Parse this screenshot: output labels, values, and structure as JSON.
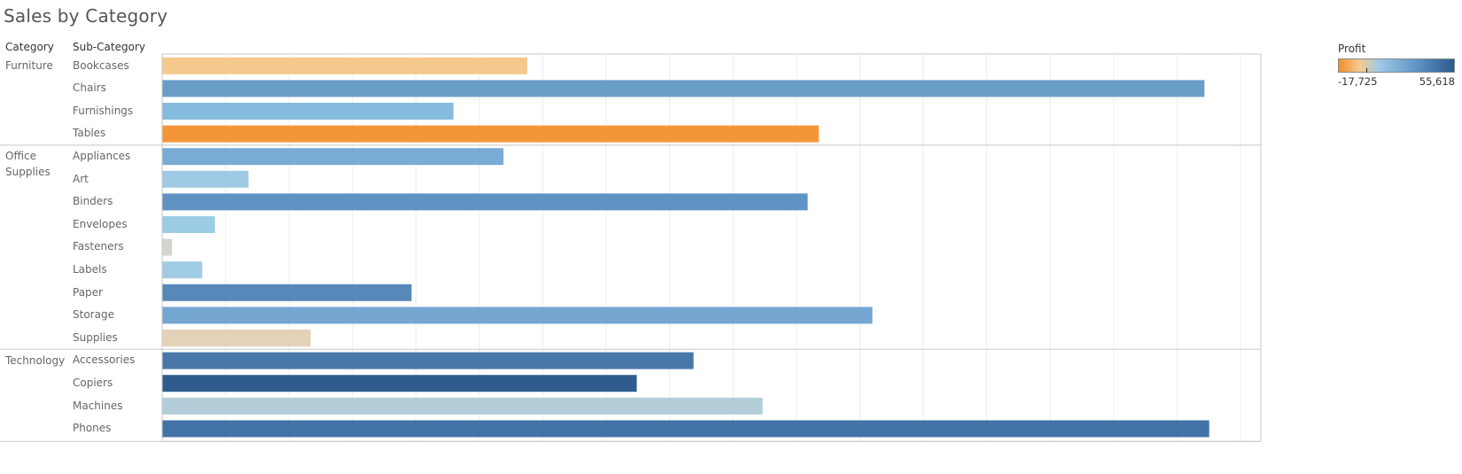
{
  "title": "Sales by Category",
  "headers": {
    "category": "Category",
    "sub_category": "Sub-Category"
  },
  "legend": {
    "title": "Profit",
    "min_label": "-17,725",
    "max_label": "55,618",
    "low_color": "#f28e2b",
    "mid_color": "#9ecae9",
    "high_color": "#2c5a8c"
  },
  "chart_data": {
    "type": "bar",
    "orientation": "horizontal",
    "measure": "Sales",
    "color_measure": "Profit",
    "xlim": [
      0,
      340000
    ],
    "grid": true,
    "legend_position": "top-right",
    "groups": [
      {
        "category": "Furniture",
        "rows": [
          {
            "sub_category": "Bookcases",
            "sales": 115000,
            "profit": -3473,
            "color": "#f5c88e"
          },
          {
            "sub_category": "Chairs",
            "sales": 328500,
            "profit": 26590,
            "color": "#6a9cc8"
          },
          {
            "sub_category": "Furnishings",
            "sales": 91700,
            "profit": 13059,
            "color": "#85bbdd"
          },
          {
            "sub_category": "Tables",
            "sales": 206900,
            "profit": -17725,
            "color": "#f5953a"
          }
        ]
      },
      {
        "category": "Office Supplies",
        "rows": [
          {
            "sub_category": "Appliances",
            "sales": 107500,
            "profit": 18138,
            "color": "#78acd6"
          },
          {
            "sub_category": "Art",
            "sales": 27100,
            "profit": 6528,
            "color": "#9fcae6"
          },
          {
            "sub_category": "Binders",
            "sales": 203400,
            "profit": 30222,
            "color": "#5f93c4"
          },
          {
            "sub_category": "Envelopes",
            "sales": 16500,
            "profit": 6964,
            "color": "#9ccbe6"
          },
          {
            "sub_category": "Fasteners",
            "sales": 3000,
            "profit": 950,
            "color": "#d3d6cf"
          },
          {
            "sub_category": "Labels",
            "sales": 12500,
            "profit": 5546,
            "color": "#a0cbe5"
          },
          {
            "sub_category": "Paper",
            "sales": 78500,
            "profit": 34054,
            "color": "#5688b9"
          },
          {
            "sub_category": "Storage",
            "sales": 223800,
            "profit": 21279,
            "color": "#74a6d1"
          },
          {
            "sub_category": "Supplies",
            "sales": 46700,
            "profit": -1189,
            "color": "#e3d2b8"
          }
        ]
      },
      {
        "category": "Technology",
        "rows": [
          {
            "sub_category": "Accessories",
            "sales": 167400,
            "profit": 41937,
            "color": "#4877a8"
          },
          {
            "sub_category": "Copiers",
            "sales": 149500,
            "profit": 55618,
            "color": "#2f5c8d"
          },
          {
            "sub_category": "Machines",
            "sales": 189200,
            "profit": 3385,
            "color": "#b3ced8"
          },
          {
            "sub_category": "Phones",
            "sales": 330000,
            "profit": 44516,
            "color": "#4273a6"
          }
        ]
      }
    ]
  }
}
